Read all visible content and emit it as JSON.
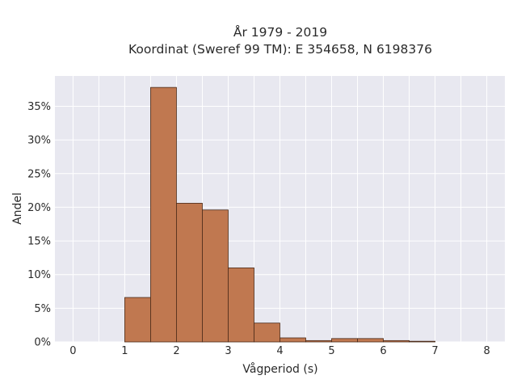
{
  "chart_data": {
    "type": "bar",
    "title": "År 1979 - 2019",
    "subtitle": "Koordinat (Sweref 99 TM): E 354658, N 6198376",
    "xlabel": "Vågperiod (s)",
    "ylabel": "Andel",
    "xlim": [
      -0.35,
      8.35
    ],
    "ylim": [
      0,
      39.5
    ],
    "xticks": [
      "0",
      "1",
      "2",
      "3",
      "4",
      "5",
      "6",
      "7",
      "8"
    ],
    "yticks": [
      "0%",
      "5%",
      "10%",
      "15%",
      "20%",
      "25%",
      "30%",
      "35%"
    ],
    "grid": true,
    "bin_width": 0.5,
    "bins": [
      {
        "start": 1.0,
        "value": 6.6
      },
      {
        "start": 1.5,
        "value": 37.8
      },
      {
        "start": 2.0,
        "value": 20.6
      },
      {
        "start": 2.5,
        "value": 19.6
      },
      {
        "start": 3.0,
        "value": 11.0
      },
      {
        "start": 3.5,
        "value": 2.8
      },
      {
        "start": 4.0,
        "value": 0.6
      },
      {
        "start": 4.5,
        "value": 0.2
      },
      {
        "start": 5.0,
        "value": 0.5
      },
      {
        "start": 5.5,
        "value": 0.5
      },
      {
        "start": 6.0,
        "value": 0.2
      },
      {
        "start": 6.5,
        "value": 0.1
      }
    ],
    "colors": {
      "bar_fill": "#c07850",
      "bar_edge": "#4a2a18",
      "plot_bg": "#e8e8f0",
      "grid": "#ffffff"
    }
  }
}
